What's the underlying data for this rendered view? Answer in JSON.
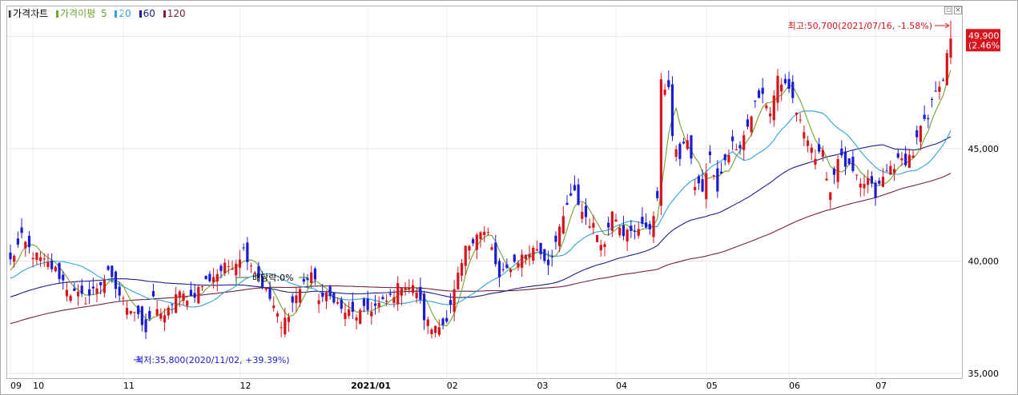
{
  "legend": {
    "price_chart": "가격차트",
    "ma_label": "가격이평",
    "ma_periods": [
      "5",
      "20",
      "60",
      "120"
    ],
    "colors": {
      "price": "#000000",
      "ma5": "#6ba52a",
      "ma20": "#2fa3d6",
      "ma60": "#1e1e8c",
      "ma120": "#7a1f3c"
    }
  },
  "chart_data": {
    "type": "candlestick",
    "title": "",
    "xlabel": "",
    "ylabel": "",
    "ylim": [
      35000,
      50800
    ],
    "y_ticks": [
      "35,000",
      "40,000",
      "45,000"
    ],
    "x_ticks": [
      "09",
      "10",
      "11",
      "12",
      "2021/01",
      "02",
      "03",
      "04",
      "05",
      "06",
      "07"
    ],
    "current_price_label": "49,900",
    "current_change_label": "(2.46%)",
    "high_annotation": "최고:50,700(2021/07/16, -1.58%)",
    "low_annotation": "최저:35,800(2020/11/02, +39.39%)",
    "dividend_annotation": "배당락:0%",
    "up_color": "#d6141c",
    "down_color": "#1b1bd6",
    "series": [
      {
        "name": "5",
        "color": "#6ba52a"
      },
      {
        "name": "20",
        "color": "#2fa3d6"
      },
      {
        "name": "60",
        "color": "#1e1e8c"
      },
      {
        "name": "120",
        "color": "#7a1f3c"
      }
    ],
    "anchors": [
      [
        0,
        40000
      ],
      [
        3,
        41000
      ],
      [
        6,
        40300
      ],
      [
        12,
        39600
      ],
      [
        16,
        38600
      ],
      [
        20,
        38300
      ],
      [
        26,
        39400
      ],
      [
        30,
        38200
      ],
      [
        34,
        37700
      ],
      [
        36,
        36600
      ],
      [
        38,
        38300
      ],
      [
        41,
        37400
      ],
      [
        44,
        38500
      ],
      [
        48,
        38400
      ],
      [
        52,
        39100
      ],
      [
        56,
        39600
      ],
      [
        60,
        40000
      ],
      [
        62,
        40500
      ],
      [
        66,
        39300
      ],
      [
        70,
        38000
      ],
      [
        72,
        37000
      ],
      [
        76,
        38500
      ],
      [
        80,
        39500
      ],
      [
        82,
        38400
      ],
      [
        86,
        38400
      ],
      [
        88,
        37800
      ],
      [
        92,
        37600
      ],
      [
        96,
        37900
      ],
      [
        100,
        38200
      ],
      [
        104,
        39000
      ],
      [
        108,
        38700
      ],
      [
        110,
        37500
      ],
      [
        112,
        37000
      ],
      [
        114,
        37300
      ],
      [
        116,
        37200
      ],
      [
        118,
        38600
      ],
      [
        121,
        40500
      ],
      [
        124,
        41300
      ],
      [
        127,
        41200
      ],
      [
        130,
        39200
      ],
      [
        133,
        39800
      ],
      [
        136,
        40200
      ],
      [
        140,
        40600
      ],
      [
        143,
        39900
      ],
      [
        146,
        41300
      ],
      [
        148,
        42500
      ],
      [
        150,
        43000
      ],
      [
        152,
        42200
      ],
      [
        155,
        41500
      ],
      [
        158,
        40700
      ],
      [
        160,
        42400
      ],
      [
        163,
        41300
      ],
      [
        166,
        41200
      ],
      [
        168,
        41800
      ],
      [
        170,
        41200
      ],
      [
        172,
        43000
      ],
      [
        173,
        47900
      ],
      [
        175,
        47500
      ],
      [
        176,
        45700
      ],
      [
        178,
        44500
      ],
      [
        180,
        45500
      ],
      [
        182,
        43400
      ],
      [
        184,
        43200
      ],
      [
        186,
        44600
      ],
      [
        188,
        43000
      ],
      [
        190,
        44600
      ],
      [
        192,
        45200
      ],
      [
        194,
        45200
      ],
      [
        196,
        46000
      ],
      [
        198,
        47000
      ],
      [
        200,
        47400
      ],
      [
        202,
        46600
      ],
      [
        204,
        48200
      ],
      [
        206,
        47700
      ],
      [
        208,
        47200
      ],
      [
        210,
        46100
      ],
      [
        212,
        45600
      ],
      [
        214,
        44600
      ],
      [
        216,
        44700
      ],
      [
        218,
        43100
      ],
      [
        220,
        44700
      ],
      [
        222,
        44300
      ],
      [
        224,
        43900
      ],
      [
        226,
        43300
      ],
      [
        228,
        43600
      ],
      [
        230,
        42900
      ],
      [
        232,
        43700
      ],
      [
        234,
        44200
      ],
      [
        236,
        44400
      ],
      [
        238,
        44500
      ],
      [
        240,
        44800
      ],
      [
        242,
        45900
      ],
      [
        244,
        46300
      ],
      [
        246,
        47700
      ],
      [
        248,
        48200
      ],
      [
        250,
        49900
      ]
    ]
  }
}
